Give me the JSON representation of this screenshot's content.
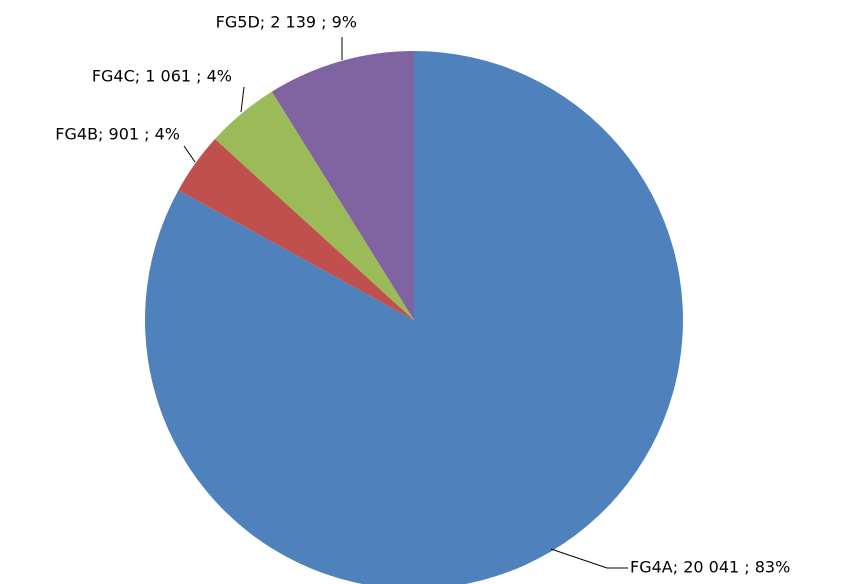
{
  "chart_data": {
    "type": "pie",
    "values": [
      20041,
      901,
      1061,
      2139
    ],
    "value_labels": [
      "FG4A;  20 041 ; 83%",
      "FG4B;   901 ; 4%",
      "FG4C;  1 061 ; 4%",
      "FG5D;  2 139 ; 9%"
    ],
    "colors": [
      "#4f81bd",
      "#c0504d",
      "#9bbb59",
      "#8064a2"
    ],
    "start_angle": 90,
    "direction": "clockwise"
  }
}
